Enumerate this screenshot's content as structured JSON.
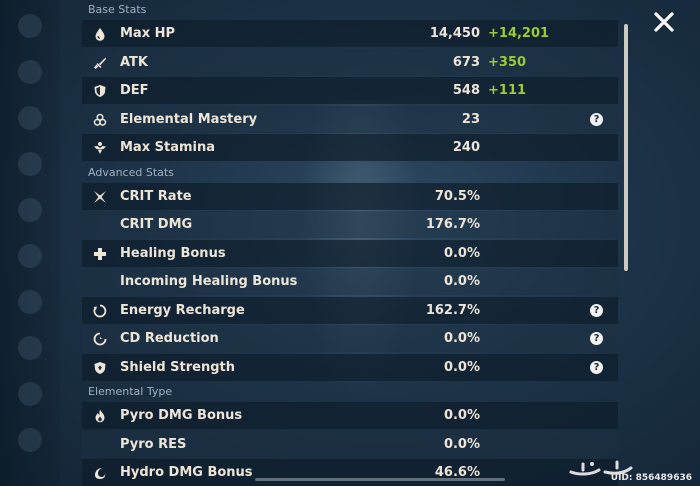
{
  "sections": {
    "base": {
      "title": "Base Stats",
      "rows": [
        {
          "label": "Max HP",
          "value": "14,450",
          "bonus": "+14,201",
          "icon": "hp-drop-icon"
        },
        {
          "label": "ATK",
          "value": "673",
          "bonus": "+350",
          "icon": "sword-icon"
        },
        {
          "label": "DEF",
          "value": "548",
          "bonus": "+111",
          "icon": "shield-icon"
        },
        {
          "label": "Elemental Mastery",
          "value": "23",
          "icon": "elemental-mastery-icon",
          "help": true
        },
        {
          "label": "Max Stamina",
          "value": "240",
          "icon": "stamina-icon"
        }
      ]
    },
    "advanced": {
      "title": "Advanced Stats",
      "rows": [
        {
          "label": "CRIT Rate",
          "value": "70.5%",
          "icon": "crit-icon"
        },
        {
          "label": "CRIT DMG",
          "value": "176.7%"
        },
        {
          "label": "Healing Bonus",
          "value": "0.0%",
          "icon": "healing-cross-icon"
        },
        {
          "label": "Incoming Healing Bonus",
          "value": "0.0%"
        },
        {
          "label": "Energy Recharge",
          "value": "162.7%",
          "icon": "energy-recharge-icon",
          "help": true
        },
        {
          "label": "CD Reduction",
          "value": "0.0%",
          "icon": "cd-reduction-icon",
          "help": true
        },
        {
          "label": "Shield Strength",
          "value": "0.0%",
          "icon": "shield-strength-icon",
          "help": true
        }
      ]
    },
    "elemental": {
      "title": "Elemental Type",
      "rows": [
        {
          "label": "Pyro DMG Bonus",
          "value": "0.0%",
          "icon": "pyro-icon"
        },
        {
          "label": "Pyro RES",
          "value": "0.0%"
        },
        {
          "label": "Hydro DMG Bonus",
          "value": "46.6%",
          "icon": "hydro-icon"
        }
      ]
    }
  },
  "help_glyph": "?",
  "close_glyph": "✕",
  "watermark_text": "حراج",
  "uid": "UID: 856489636",
  "colors": {
    "bonus": "#9acd32",
    "text": "#ece5d8",
    "header": "#9fb0c1"
  }
}
